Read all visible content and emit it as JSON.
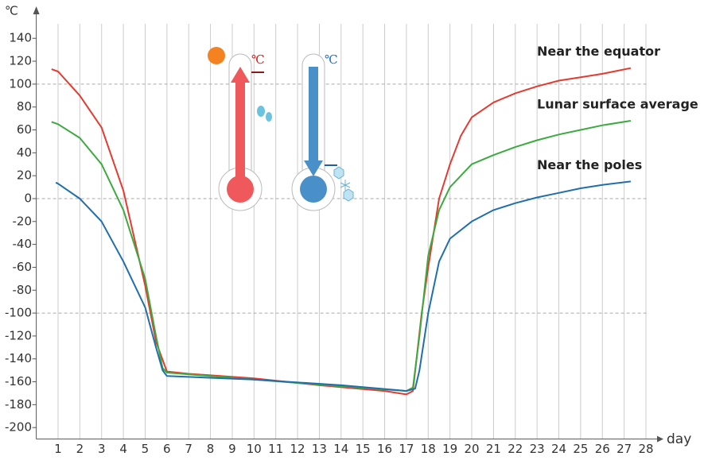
{
  "chart_data": {
    "type": "line",
    "y_label": "℃",
    "x_label": "day",
    "xlim": [
      0,
      28.5
    ],
    "ylim": [
      -210,
      160
    ],
    "xticks": [
      1,
      2,
      3,
      4,
      5,
      6,
      7,
      8,
      9,
      10,
      11,
      12,
      13,
      14,
      15,
      16,
      17,
      18,
      19,
      20,
      21,
      22,
      23,
      24,
      25,
      26,
      27,
      28
    ],
    "yticks": [
      -200,
      -180,
      -160,
      -140,
      -120,
      -100,
      -80,
      -60,
      -40,
      -20,
      0,
      20,
      40,
      60,
      80,
      100,
      120,
      140
    ],
    "dashed_lines": [
      -100,
      0,
      100
    ],
    "series": [
      {
        "name": "Near the equator",
        "color": "#e53a2f",
        "x": [
          0.7,
          1,
          2,
          3,
          4,
          5,
          5.5,
          6,
          7,
          10,
          13,
          16,
          17,
          17.3,
          17.7,
          18,
          18.5,
          19,
          19.5,
          20,
          21,
          22,
          23,
          24,
          25,
          26,
          27.3
        ],
        "values": [
          113,
          111,
          90,
          62,
          7,
          -76,
          -125,
          -151,
          -153,
          -157,
          -163,
          -168,
          -171,
          -168,
          -100,
          -60,
          0,
          30,
          55,
          71,
          84,
          92,
          98,
          103,
          106,
          109,
          114
        ]
      },
      {
        "name": "Lunar surface average",
        "color": "#3bab3f",
        "x": [
          0.7,
          1,
          2,
          3,
          4,
          5,
          5.5,
          5.8,
          6,
          10,
          14,
          17,
          17.3,
          17.6,
          18,
          18.5,
          19,
          20,
          21,
          22,
          23,
          24,
          25,
          26,
          27.3
        ],
        "values": [
          67,
          65,
          53,
          30,
          -10,
          -70,
          -120,
          -148,
          -152,
          -158,
          -164,
          -168,
          -165,
          -120,
          -50,
          -10,
          10,
          30,
          38,
          45,
          51,
          56,
          60,
          64,
          68
        ]
      },
      {
        "name": "Near the poles",
        "color": "#1f6fae",
        "x": [
          0.9,
          1,
          2,
          3,
          4,
          5,
          5.5,
          5.8,
          6,
          10,
          14,
          17,
          17.4,
          17.6,
          18,
          18.5,
          19,
          20,
          21,
          22,
          23,
          24,
          25,
          26,
          27.3
        ],
        "values": [
          14,
          13,
          0,
          -20,
          -55,
          -95,
          -130,
          -150,
          -155,
          -158,
          -163,
          -168,
          -166,
          -150,
          -100,
          -55,
          -35,
          -20,
          -10,
          -4,
          1,
          5,
          9,
          12,
          15
        ]
      }
    ]
  }
}
